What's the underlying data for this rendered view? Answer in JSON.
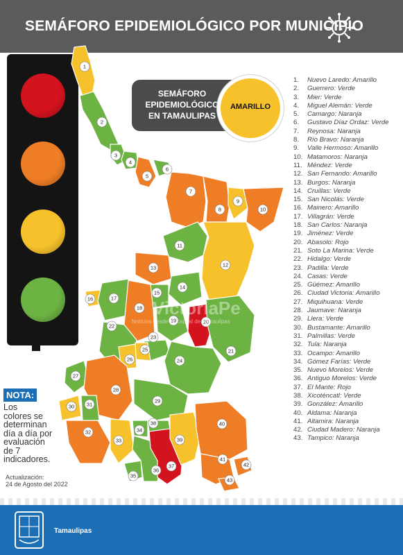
{
  "header": {
    "title": "SEMÁFORO EPIDEMIOLÓGICO POR MUNICIPIO",
    "icon": "virus-icon"
  },
  "colors": {
    "Rojo": "#d3131e",
    "Naranja": "#ee7d25",
    "Amarillo": "#f6c12b",
    "Verde": "#6db344",
    "header_bg": "#5a5b5d",
    "footer_bg": "#1d6fb5"
  },
  "traffic_light": {
    "lamps": [
      "Rojo",
      "Naranja",
      "Amarillo",
      "Verde"
    ]
  },
  "state_status": {
    "lines": [
      "SEMÁFORO",
      "EPIDEMIOLÓGICO",
      "EN TAMAULIPAS"
    ],
    "value": "AMARILLO"
  },
  "legend": [
    {
      "num": "1.",
      "name": "Nuevo Laredo",
      "status": "Amarillo"
    },
    {
      "num": "2.",
      "name": "Guerrero",
      "status": "Verde"
    },
    {
      "num": "3.",
      "name": "Mier",
      "status": "Verde"
    },
    {
      "num": "4.",
      "name": "Miguel Alemán",
      "status": "Verde"
    },
    {
      "num": "5.",
      "name": "Camargo",
      "status": "Naranja"
    },
    {
      "num": "6.",
      "name": "Gustavo Díaz Ordaz",
      "status": "Verde"
    },
    {
      "num": "7.",
      "name": "Reynosa",
      "status": "Naranja"
    },
    {
      "num": "8.",
      "name": "Río Bravo",
      "status": "Naranja"
    },
    {
      "num": "9.",
      "name": "Valle Hermoso",
      "status": "Amarillo"
    },
    {
      "num": "10.",
      "name": "Matamoros",
      "status": "Naranja"
    },
    {
      "num": "11.",
      "name": "Méndez",
      "status": "Verde"
    },
    {
      "num": "12.",
      "name": "San Fernando",
      "status": "Amarillo"
    },
    {
      "num": "13.",
      "name": "Burgos",
      "status": "Naranja"
    },
    {
      "num": "14.",
      "name": "Cruillas",
      "status": "Verde"
    },
    {
      "num": "15.",
      "name": "San Nicolás",
      "status": "Verde"
    },
    {
      "num": "16.",
      "name": "Mainero",
      "status": "Amarillo"
    },
    {
      "num": "17.",
      "name": "Villagrán",
      "status": "Verde"
    },
    {
      "num": "18.",
      "name": "San Carlos",
      "status": "Naranja"
    },
    {
      "num": "19.",
      "name": "Jiménez",
      "status": "Verde"
    },
    {
      "num": "20.",
      "name": "Abasolo",
      "status": "Rojo"
    },
    {
      "num": "21.",
      "name": "Soto La Marina",
      "status": "Verde"
    },
    {
      "num": "22.",
      "name": "Hidalgo",
      "status": "Verde"
    },
    {
      "num": "23.",
      "name": "Padilla",
      "status": "Verde"
    },
    {
      "num": "24.",
      "name": "Casas",
      "status": "Verde"
    },
    {
      "num": "25.",
      "name": "Güémez",
      "status": "Amarillo"
    },
    {
      "num": "26.",
      "name": "Ciudad Victoria",
      "status": "Amarillo"
    },
    {
      "num": "27.",
      "name": "Miquihuana",
      "status": "Verde"
    },
    {
      "num": "28.",
      "name": "Jaumave",
      "status": "Naranja"
    },
    {
      "num": "29.",
      "name": "Llera",
      "status": "Verde"
    },
    {
      "num": "30.",
      "name": "Bustamante",
      "status": "Amarillo"
    },
    {
      "num": "31.",
      "name": "Palmillas",
      "status": "Verde"
    },
    {
      "num": "32.",
      "name": "Tula",
      "status": "Naranja"
    },
    {
      "num": "33.",
      "name": "Ocampo",
      "status": "Amarillo"
    },
    {
      "num": "34.",
      "name": "Gómez Farías",
      "status": "Verde"
    },
    {
      "num": "35.",
      "name": "Nuevo Morelos",
      "status": "Verde"
    },
    {
      "num": "36.",
      "name": "Antiguo Morelos",
      "status": "Verde"
    },
    {
      "num": "37.",
      "name": "El Mante",
      "status": "Rojo"
    },
    {
      "num": "38.",
      "name": "Xicoténcatl",
      "status": "Verde"
    },
    {
      "num": "39.",
      "name": "González",
      "status": "Amarillo"
    },
    {
      "num": "40.",
      "name": "Aldama",
      "status": "Naranja"
    },
    {
      "num": "41.",
      "name": "Altamira",
      "status": "Naranja"
    },
    {
      "num": "42.",
      "name": "Ciudad Madero",
      "status": "Naranja"
    },
    {
      "num": "43.",
      "name": "Tampico",
      "status": "Naranja"
    }
  ],
  "map_numbers": [
    "1",
    "2",
    "3",
    "4",
    "5",
    "6",
    "7",
    "8",
    "9",
    "10",
    "11",
    "12",
    "13",
    "14",
    "15",
    "16",
    "17",
    "18",
    "19",
    "20",
    "21",
    "22",
    "23",
    "24",
    "25",
    "26",
    "27",
    "28",
    "29",
    "30",
    "31",
    "32",
    "33",
    "34",
    "35",
    "36",
    "37",
    "38",
    "39",
    "40",
    "41",
    "42",
    "43"
  ],
  "nota": {
    "title": "NOTA:",
    "lines": [
      "Los",
      "colores se",
      "determinan",
      "día a día por",
      "evaluación",
      "de 7",
      "indicadores."
    ]
  },
  "update": {
    "label": "Actualización:",
    "date": "24 de Agosto del 2022"
  },
  "watermark": {
    "main": "VictoriaPe",
    "sub": "Noticias desde la Capital de Tamaulipas"
  },
  "footer": {
    "label": "Tamaulipas",
    "icon": "coat-of-arms-icon"
  }
}
